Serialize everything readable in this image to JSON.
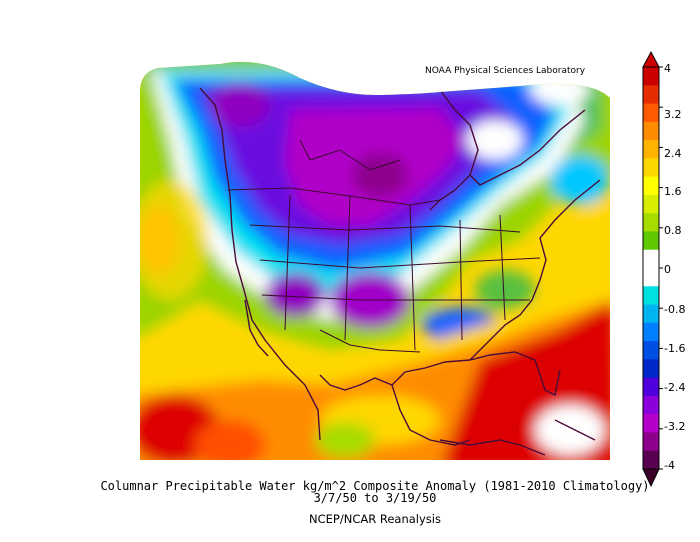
{
  "map": {
    "credit": "NOAA Physical Sciences Laboratory",
    "title_line1": "Columnar Precipitable Water kg/m^2 Composite Anomaly (1981-2010 Climatology)",
    "title_line2": "3/7/50  to 3/19/50",
    "title_line3": "NCEP/NCAR Reanalysis",
    "variable": "Columnar Precipitable Water",
    "units": "kg/m^2",
    "statistic": "Composite Anomaly",
    "climatology": "1981-2010",
    "date_range": [
      "3/7/50",
      "3/19/50"
    ],
    "dataset": "NCEP/NCAR Reanalysis",
    "region": "North America"
  },
  "colorbar": {
    "labels": [
      "4",
      "3.2",
      "2.4",
      "1.6",
      "0.8",
      "0",
      "-0.8",
      "-1.6",
      "-2.4",
      "-3.2",
      "-4"
    ],
    "min": -4,
    "max": 4,
    "step": 0.4,
    "colors_top_to_bottom": [
      "#cc0000",
      "#e52d00",
      "#ff5a00",
      "#ff8c00",
      "#ffb400",
      "#ffd700",
      "#ffff00",
      "#d8ee00",
      "#a8dc00",
      "#5ec800",
      "#ffffff",
      "#ffffff",
      "#00e0e0",
      "#00b4f0",
      "#0080ff",
      "#0050e6",
      "#0028c8",
      "#5000dc",
      "#8c00dc",
      "#b400c8",
      "#8c008c",
      "#5a0050"
    ]
  }
}
